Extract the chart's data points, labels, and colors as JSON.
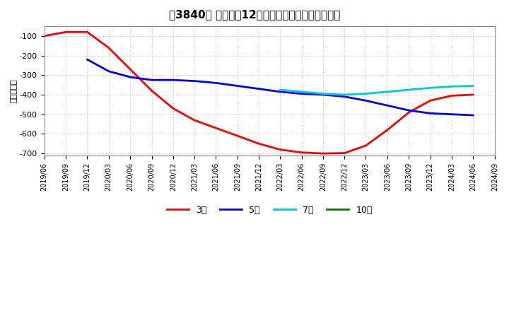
{
  "title": "［3840］ 経常利益12か月移動合計の平均値の推移",
  "ylabel": "（百万円）",
  "background_color": "#ffffff",
  "plot_bg_color": "#ffffff",
  "grid_color": "#aaaaaa",
  "ylim": [
    -700,
    -50
  ],
  "yticks": [
    -700,
    -600,
    -500,
    -400,
    -300,
    -200,
    -100
  ],
  "series": {
    "3年": {
      "color": "#ff0000",
      "dates": [
        "2019/06",
        "2019/09",
        "2019/12",
        "2020/03",
        "2020/06",
        "2020/09",
        "2020/12",
        "2021/03",
        "2021/06",
        "2021/09",
        "2021/12",
        "2022/03",
        "2022/06",
        "2022/09",
        "2022/12",
        "2023/03",
        "2023/06",
        "2023/09",
        "2023/12",
        "2024/03",
        "2024/06"
      ],
      "values": [
        -100,
        -80,
        -80,
        -160,
        -270,
        -380,
        -470,
        -530,
        -570,
        -610,
        -650,
        -680,
        -695,
        -700,
        -698,
        -660,
        -580,
        -490,
        -430,
        -405,
        -400
      ]
    },
    "5年": {
      "color": "#0000ff",
      "dates": [
        "2019/12",
        "2020/03",
        "2020/06",
        "2020/09",
        "2020/12",
        "2021/03",
        "2021/06",
        "2021/09",
        "2021/12",
        "2022/03",
        "2022/06",
        "2022/09",
        "2022/12",
        "2023/03",
        "2023/06",
        "2023/09",
        "2023/12",
        "2024/03",
        "2024/06"
      ],
      "values": [
        -220,
        -280,
        -310,
        -325,
        -325,
        -330,
        -340,
        -355,
        -370,
        -385,
        -395,
        -400,
        -410,
        -430,
        -455,
        -480,
        -495,
        -500,
        -505
      ]
    },
    "7年": {
      "color": "#00cccc",
      "dates": [
        "2022/03",
        "2022/06",
        "2022/09",
        "2022/12",
        "2023/03",
        "2023/06",
        "2023/09",
        "2023/12",
        "2024/03",
        "2024/06"
      ],
      "values": [
        -375,
        -385,
        -395,
        -400,
        -395,
        -385,
        -375,
        -365,
        -358,
        -355
      ]
    },
    "10年": {
      "color": "#008000",
      "dates": [],
      "values": []
    }
  },
  "legend_entries": [
    "3年",
    "5年",
    "7年",
    "10年"
  ],
  "legend_colors": [
    "#ff0000",
    "#0000ff",
    "#00cccc",
    "#008000"
  ],
  "xtick_labels": [
    "2019/06",
    "2019/09",
    "2019/12",
    "2020/03",
    "2020/06",
    "2020/09",
    "2020/12",
    "2021/03",
    "2021/06",
    "2021/09",
    "2021/12",
    "2022/03",
    "2022/06",
    "2022/09",
    "2022/12",
    "2023/03",
    "2023/06",
    "2023/09",
    "2023/12",
    "2024/03",
    "2024/06",
    "2024/09"
  ]
}
